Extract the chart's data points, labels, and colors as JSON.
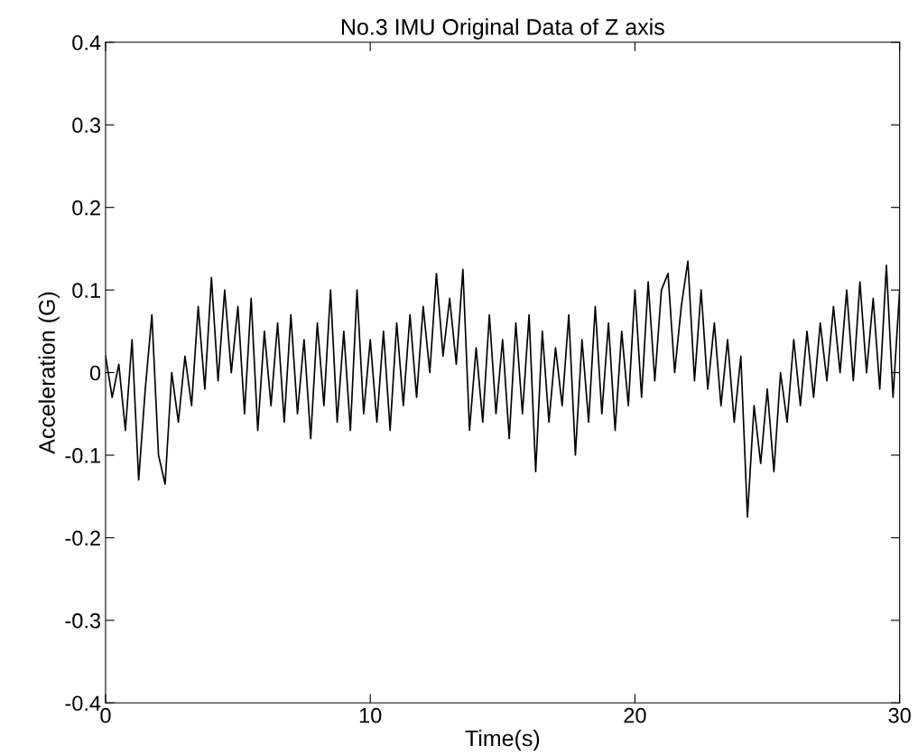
{
  "chart_data": {
    "type": "line",
    "title": "No.3 IMU Original Data of Z axis",
    "xlabel": "Time(s)",
    "ylabel": "Acceleration (G)",
    "x": [
      0,
      0.25,
      0.5,
      0.75,
      1,
      1.25,
      1.5,
      1.75,
      2,
      2.25,
      2.5,
      2.75,
      3,
      3.25,
      3.5,
      3.75,
      4,
      4.25,
      4.5,
      4.75,
      5,
      5.25,
      5.5,
      5.75,
      6,
      6.25,
      6.5,
      6.75,
      7,
      7.25,
      7.5,
      7.75,
      8,
      8.25,
      8.5,
      8.75,
      9,
      9.25,
      9.5,
      9.75,
      10,
      10.25,
      10.5,
      10.75,
      11,
      11.25,
      11.5,
      11.75,
      12,
      12.25,
      12.5,
      12.75,
      13,
      13.25,
      13.5,
      13.75,
      14,
      14.25,
      14.5,
      14.75,
      15,
      15.25,
      15.5,
      15.75,
      16,
      16.25,
      16.5,
      16.75,
      17,
      17.25,
      17.5,
      17.75,
      18,
      18.25,
      18.5,
      18.75,
      19,
      19.25,
      19.5,
      19.75,
      20,
      20.25,
      20.5,
      20.75,
      21,
      21.25,
      21.5,
      21.75,
      22,
      22.25,
      22.5,
      22.75,
      23,
      23.25,
      23.5,
      23.75,
      24,
      24.25,
      24.5,
      24.75,
      25,
      25.25,
      25.5,
      25.75,
      26,
      26.25,
      26.5,
      26.75,
      27,
      27.25,
      27.5,
      27.75,
      28,
      28.25,
      28.5,
      28.75,
      29,
      29.25,
      29.5,
      29.75,
      30
    ],
    "series": [
      {
        "color": "#000000",
        "values": [
          0.02,
          -0.03,
          0.01,
          -0.07,
          0.04,
          -0.13,
          -0.02,
          0.07,
          -0.1,
          -0.135,
          0.0,
          -0.06,
          0.02,
          -0.04,
          0.08,
          -0.02,
          0.115,
          -0.01,
          0.1,
          0.0,
          0.08,
          -0.05,
          0.09,
          -0.07,
          0.05,
          -0.04,
          0.06,
          -0.06,
          0.07,
          -0.05,
          0.04,
          -0.08,
          0.06,
          -0.04,
          0.1,
          -0.06,
          0.05,
          -0.07,
          0.1,
          -0.05,
          0.04,
          -0.06,
          0.05,
          -0.07,
          0.06,
          -0.04,
          0.07,
          -0.03,
          0.08,
          0.0,
          0.12,
          0.02,
          0.09,
          0.01,
          0.125,
          -0.07,
          0.03,
          -0.06,
          0.07,
          -0.05,
          0.04,
          -0.08,
          0.06,
          -0.05,
          0.07,
          -0.12,
          0.05,
          -0.06,
          0.03,
          -0.04,
          0.07,
          -0.1,
          0.04,
          -0.06,
          0.08,
          -0.05,
          0.06,
          -0.07,
          0.05,
          -0.04,
          0.1,
          -0.03,
          0.11,
          -0.01,
          0.1,
          0.12,
          0.0,
          0.08,
          0.135,
          -0.01,
          0.1,
          -0.02,
          0.06,
          -0.04,
          0.04,
          -0.06,
          0.02,
          -0.175,
          -0.04,
          -0.11,
          -0.02,
          -0.12,
          0.0,
          -0.06,
          0.04,
          -0.04,
          0.05,
          -0.03,
          0.06,
          -0.01,
          0.08,
          0.0,
          0.1,
          -0.01,
          0.11,
          0.0,
          0.09,
          -0.02,
          0.13,
          -0.03,
          0.1
        ]
      }
    ],
    "xlim": [
      0,
      30
    ],
    "xticks": [
      0,
      10,
      20,
      30
    ],
    "ylim": [
      -0.4,
      0.4
    ],
    "yticks": [
      -0.4,
      -0.3,
      -0.2,
      -0.1,
      0,
      0.1,
      0.2,
      0.3,
      0.4
    ],
    "grid": false,
    "legend": false
  }
}
